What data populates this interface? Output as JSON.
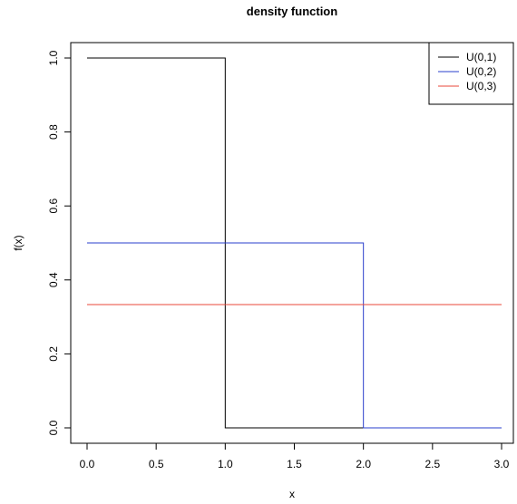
{
  "chart_data": {
    "type": "line",
    "title": "density function",
    "xlabel": "x",
    "ylabel": "f(x)",
    "xlim": [
      0,
      3
    ],
    "ylim": [
      0,
      1
    ],
    "x_ticks": [
      {
        "value": 0,
        "label": "0.0"
      },
      {
        "value": 0.5,
        "label": "0.5"
      },
      {
        "value": 1,
        "label": "1.0"
      },
      {
        "value": 1.5,
        "label": "1.5"
      },
      {
        "value": 2,
        "label": "2.0"
      },
      {
        "value": 2.5,
        "label": "2.5"
      },
      {
        "value": 3,
        "label": "3.0"
      }
    ],
    "y_ticks": [
      {
        "value": 0,
        "label": "0.0"
      },
      {
        "value": 0.2,
        "label": "0.2"
      },
      {
        "value": 0.4,
        "label": "0.4"
      },
      {
        "value": 0.6,
        "label": "0.6"
      },
      {
        "value": 0.8,
        "label": "0.8"
      },
      {
        "value": 1,
        "label": "1.0"
      }
    ],
    "grid": false,
    "legend_position": "top-right",
    "series": [
      {
        "name": "U(0,1)",
        "color": "#000000",
        "x": [
          0,
          1,
          1,
          3
        ],
        "y": [
          1,
          1,
          0,
          0
        ]
      },
      {
        "name": "U(0,2)",
        "color": "#2a3fcc",
        "x": [
          0,
          2,
          2,
          3
        ],
        "y": [
          0.5,
          0.5,
          0,
          0
        ]
      },
      {
        "name": "U(0,3)",
        "color": "#e8473a",
        "x": [
          0,
          3
        ],
        "y": [
          0.3333,
          0.3333
        ]
      }
    ]
  }
}
